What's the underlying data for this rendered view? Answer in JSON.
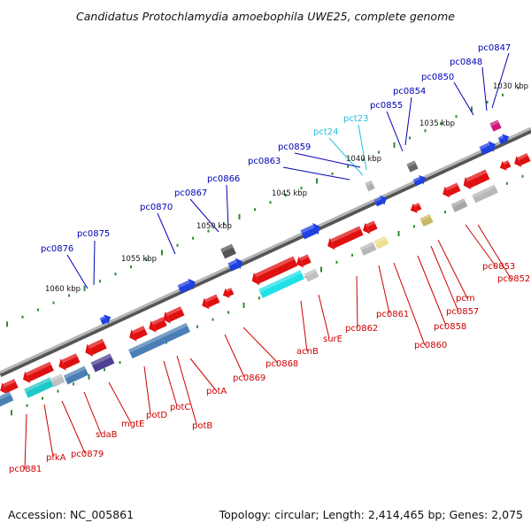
{
  "title": "Candidatus Protochlamydia amoebophila UWE25, complete genome",
  "footer": {
    "accession": "Accession: NC_005861",
    "summary": "Topology: circular; Length: 2,414,465 bp; Genes: 2,075"
  },
  "colors": {
    "forward_label": "#0000b4",
    "rna_label": "#22c0e0",
    "reverse_label": "#cc0000",
    "backbone": "#8a8a8a",
    "tick": "#2e8b2e"
  },
  "ticks": [
    "1030 kbp",
    "1035 kbp",
    "1040 kbp",
    "1045 kbp",
    "1050 kbp",
    "1055 kbp",
    "1060 kbp"
  ],
  "forward_labels": [
    "pc0847",
    "pc0848",
    "pc0850",
    "pc0854",
    "pc0855",
    "pc0859",
    "pc0863",
    "pc0866",
    "pc0867",
    "pc0870",
    "pc0875",
    "pc0876"
  ],
  "rna_labels": [
    "pct23",
    "pct24"
  ],
  "reverse_labels": [
    "pc0852",
    "pc0853",
    "pcm",
    "pc0857",
    "pc0858",
    "pc0860",
    "pc0861",
    "pc0862",
    "surE",
    "acnB",
    "pc0868",
    "pc0869",
    "potA",
    "potB",
    "potC",
    "potD",
    "mgtE",
    "sdaB",
    "pc0879",
    "pfkA",
    "pc0881"
  ]
}
